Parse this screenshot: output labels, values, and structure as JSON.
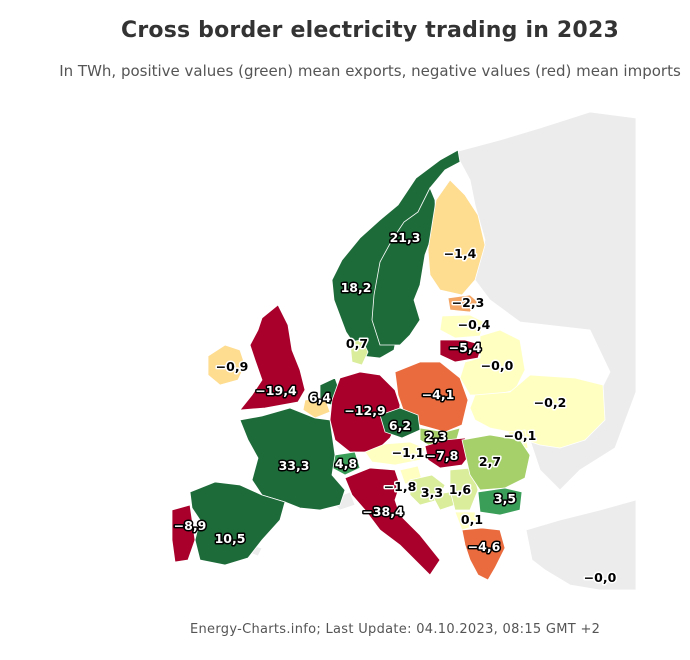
{
  "title": "Cross border electricity trading in 2023",
  "subtitle": "In TWh, positive values (green) mean exports, negative values (red) mean imports",
  "footer": "Energy-Charts.info; Last Update: 04.10.2023, 08:15 GMT +2",
  "colors": {
    "strong_export": "#1e6b3a",
    "export": "#3a9e59",
    "mild_export": "#a6d06a",
    "slight_export": "#d9ed9a",
    "neutral": "#ffffc2",
    "slight_import": "#fedc90",
    "import": "#f4a666",
    "strong_import": "#ea6c3e",
    "heavy_import": "#a8002a",
    "non_data": "#ececec"
  },
  "countries": [
    {
      "code": "NO",
      "value": "21,3",
      "category": "strong_export"
    },
    {
      "code": "SE",
      "value": "18,2",
      "category": "strong_export"
    },
    {
      "code": "FI",
      "value": "−1,4",
      "category": "slight_import"
    },
    {
      "code": "EE",
      "value": "−2,3",
      "category": "import"
    },
    {
      "code": "LV",
      "value": "−0,4",
      "category": "neutral"
    },
    {
      "code": "LT",
      "value": "−5,4",
      "category": "heavy_import"
    },
    {
      "code": "BY",
      "value": "−0,0",
      "category": "neutral"
    },
    {
      "code": "UA",
      "value": "−0,2",
      "category": "neutral"
    },
    {
      "code": "MD",
      "value": "−0,1",
      "category": "neutral"
    },
    {
      "code": "DK",
      "value": "0,7",
      "category": "slight_export"
    },
    {
      "code": "IE",
      "value": "−0,9",
      "category": "slight_import"
    },
    {
      "code": "GB",
      "value": "−19,4",
      "category": "heavy_import"
    },
    {
      "code": "NL",
      "value": "6,4",
      "category": "strong_export"
    },
    {
      "code": "BE",
      "value": "",
      "category": "slight_import"
    },
    {
      "code": "DE",
      "value": "−12,9",
      "category": "heavy_import"
    },
    {
      "code": "PL",
      "value": "−4,1",
      "category": "strong_import"
    },
    {
      "code": "CZ",
      "value": "6,2",
      "category": "strong_export"
    },
    {
      "code": "SK",
      "value": "2,3",
      "category": "mild_export"
    },
    {
      "code": "HU",
      "value": "−7,8",
      "category": "heavy_import"
    },
    {
      "code": "AT",
      "value": "−1,1",
      "category": "neutral"
    },
    {
      "code": "CH",
      "value": "4,8",
      "category": "export"
    },
    {
      "code": "FR",
      "value": "33,3",
      "category": "strong_export"
    },
    {
      "code": "ES",
      "value": "10,5",
      "category": "strong_export"
    },
    {
      "code": "PT",
      "value": "−8,9",
      "category": "heavy_import"
    },
    {
      "code": "IT",
      "value": "−38,4",
      "category": "heavy_import"
    },
    {
      "code": "SI",
      "value": "−1,8",
      "category": "neutral"
    },
    {
      "code": "HR",
      "value": "3,3",
      "category": "slight_export"
    },
    {
      "code": "BA",
      "value": "",
      "category": "slight_export"
    },
    {
      "code": "RS",
      "value": "1,6",
      "category": "slight_export"
    },
    {
      "code": "RO",
      "value": "2,7",
      "category": "mild_export"
    },
    {
      "code": "BG",
      "value": "3,5",
      "category": "export"
    },
    {
      "code": "MK",
      "value": "0,1",
      "category": "neutral"
    },
    {
      "code": "GR",
      "value": "−4,6",
      "category": "strong_import"
    },
    {
      "code": "TR",
      "value": "−0,0",
      "category": "neutral"
    }
  ]
}
